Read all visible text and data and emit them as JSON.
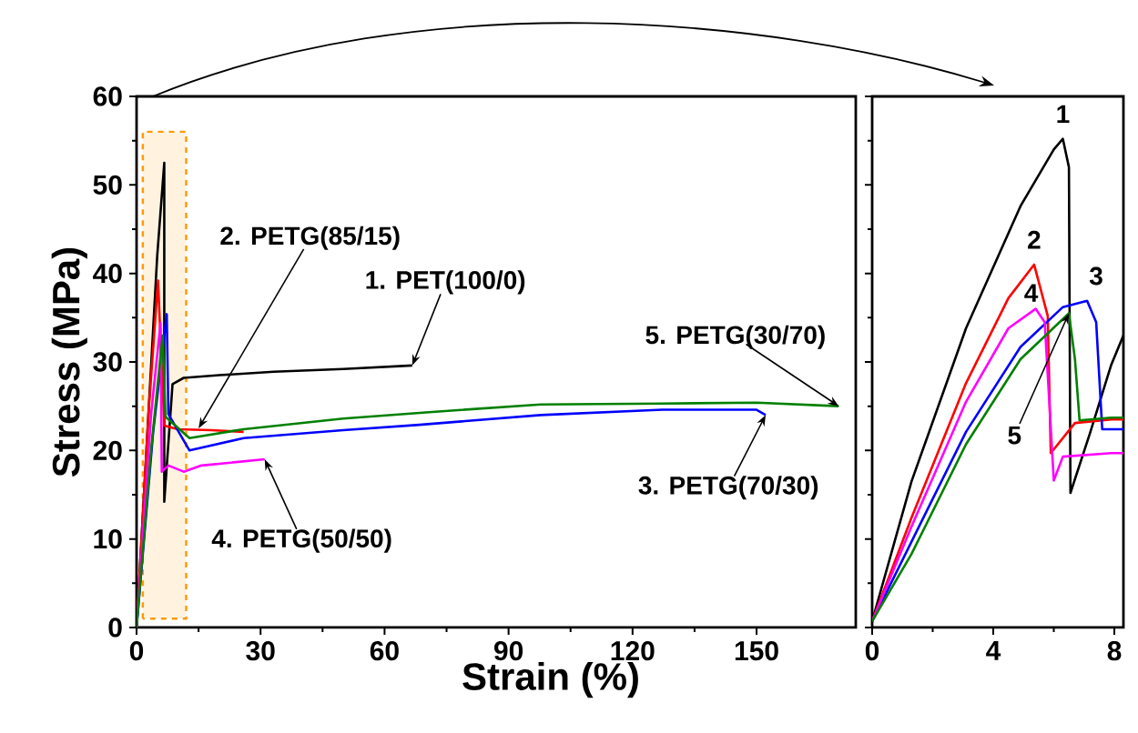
{
  "chart_data": [
    {
      "type": "line",
      "xlabel": "Strain (%)",
      "ylabel": "Stress (MPa)",
      "xlim": [
        0,
        174
      ],
      "ylim": [
        0,
        60
      ],
      "xticks": [
        0,
        30,
        60,
        90,
        120,
        150
      ],
      "yticks": [
        0,
        10,
        20,
        30,
        40,
        50,
        60
      ],
      "series": [
        {
          "color": "#000000",
          "x": [
            0,
            5,
            6.7,
            6.7,
            8.7,
            11.4,
            20,
            33.2,
            50,
            66.7
          ],
          "values": [
            0,
            42,
            52.5,
            14.2,
            27.5,
            28.2,
            28.5,
            28.9,
            29.2,
            29.6
          ]
        },
        {
          "color": "#ff0000",
          "x": [
            0,
            3,
            5.2,
            6.7,
            10,
            18,
            25.9
          ],
          "values": [
            0,
            25,
            39.2,
            22.8,
            22.4,
            22.3,
            22.1
          ]
        },
        {
          "color": "#0000ff",
          "x": [
            0,
            4,
            7.3,
            7.7,
            12.8,
            25.9,
            50,
            68.4,
            97.8,
            127.2,
            150,
            152.2
          ],
          "values": [
            0,
            22,
            35.4,
            24.1,
            20.0,
            21.4,
            22.3,
            22.9,
            24.0,
            24.6,
            24.6,
            24.0
          ]
        },
        {
          "color": "#ff00ff",
          "x": [
            0,
            3.5,
            5.8,
            6.1,
            7.7,
            11.4,
            15.7,
            31
          ],
          "values": [
            0,
            24,
            34.4,
            17.6,
            18.3,
            17.6,
            18.3,
            19.0
          ]
        },
        {
          "color": "#008000",
          "x": [
            0,
            3.5,
            6.3,
            7.0,
            12.8,
            25.9,
            50,
            70,
            97.8,
            127.2,
            150,
            169.9
          ],
          "values": [
            0,
            20,
            33.0,
            23.8,
            21.4,
            22.4,
            23.6,
            24.3,
            25.2,
            25.3,
            25.4,
            25.0
          ]
        }
      ],
      "bands": [
        {
          "axis": "x",
          "from": 1.5,
          "to": 12,
          "color": "#ff9900"
        }
      ],
      "annotations": [
        {
          "text": "1. PET(100/0)",
          "x": 66.7,
          "y": 29.6
        },
        {
          "text": "2. PETG(85/15)",
          "x": 15,
          "y": 22.5
        },
        {
          "text": "5. PETG(30/70)",
          "x": 169.9,
          "y": 25.0
        },
        {
          "text": "3. PETG(70/30)",
          "x": 152.2,
          "y": 24.0
        },
        {
          "text": "4. PETG(50/50)",
          "x": 31,
          "y": 19.0
        }
      ]
    },
    {
      "type": "line",
      "xlim": [
        0,
        8.3
      ],
      "ylim": [
        0,
        60
      ],
      "xticks": [
        0,
        4,
        8
      ],
      "yticks": [
        0,
        10,
        20,
        30,
        40,
        50,
        60
      ],
      "tick_labels": "x",
      "series": [
        {
          "color": "#000000",
          "x": [
            0,
            1.3,
            3.1,
            4.9,
            6.0,
            6.3,
            6.5,
            6.55,
            7.2,
            7.9,
            8.3
          ],
          "values": [
            0.7,
            16.5,
            33.8,
            47.6,
            54,
            55.2,
            52,
            15.2,
            22,
            29.7,
            33
          ]
        },
        {
          "color": "#ff0000",
          "x": [
            0,
            1.3,
            3.1,
            4.5,
            5.35,
            5.8,
            5.9,
            6.7,
            7.9,
            8.3
          ],
          "values": [
            0.7,
            12.4,
            27.6,
            37.2,
            41.0,
            35.2,
            19.7,
            23.1,
            23.5,
            23.5
          ]
        },
        {
          "color": "#0000ff",
          "x": [
            0,
            1.3,
            3.1,
            4.9,
            6.3,
            7.1,
            7.4,
            7.6,
            8.3
          ],
          "values": [
            0.7,
            9.7,
            22.1,
            31.7,
            36.2,
            36.9,
            34.5,
            22.4,
            22.4
          ]
        },
        {
          "color": "#ff00ff",
          "x": [
            0,
            1.3,
            3.1,
            4.5,
            5.4,
            5.7,
            6.0,
            6.3,
            7.9,
            8.3
          ],
          "values": [
            0.7,
            11.4,
            25.5,
            33.8,
            36,
            34.5,
            16.6,
            19.3,
            19.7,
            19.7
          ]
        },
        {
          "color": "#008000",
          "x": [
            0,
            1.3,
            3.1,
            4.9,
            6.5,
            6.7,
            6.85,
            7.9,
            8.3
          ],
          "values": [
            0.7,
            8.3,
            20.7,
            30.3,
            35.5,
            30.3,
            23.4,
            23.7,
            23.7
          ]
        }
      ],
      "annotations": [
        {
          "text": "1",
          "x": 6.3,
          "y": 55.2
        },
        {
          "text": "2",
          "x": 5.35,
          "y": 41.0
        },
        {
          "text": "3",
          "x": 7.1,
          "y": 36.9
        },
        {
          "text": "4",
          "x": 5.4,
          "y": 36
        },
        {
          "text": "5",
          "x": 6.5,
          "y": 35.5
        }
      ]
    }
  ]
}
